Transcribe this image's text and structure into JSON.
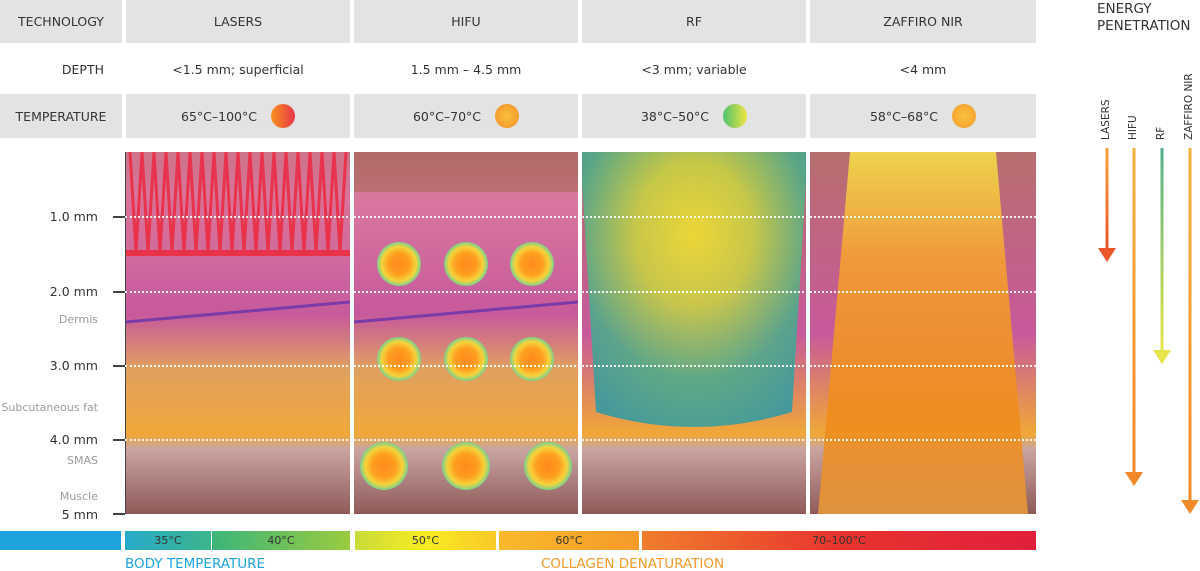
{
  "header": {
    "technology": "TECHNOLOGY",
    "cols": [
      "LASERS",
      "HIFU",
      "RF",
      "ZAFFIRO NIR"
    ]
  },
  "depth_row": {
    "label": "DEPTH",
    "values": [
      "<1.5 mm; superficial",
      "1.5 mm – 4.5 mm",
      "<3 mm; variable",
      "<4 mm"
    ]
  },
  "temperature_row": {
    "label": "TEMPERATURE",
    "values": [
      "65°C–100°C",
      "60°C–70°C",
      "38°C–50°C",
      "58°C–68°C"
    ],
    "dot_colors": [
      [
        "#f7941d",
        "#e8344a"
      ],
      [
        "#f7b733",
        "#f28c28"
      ],
      [
        "#4fc36f",
        "#f0e442"
      ],
      [
        "#f9c23c",
        "#f39c2c"
      ]
    ]
  },
  "depth_axis": {
    "marks": [
      "1.0 mm",
      "2.0 mm",
      "3.0 mm",
      "4.0 mm",
      "5 mm"
    ],
    "layers": [
      "Dermis",
      "Subcutaneous fat",
      "SMAS",
      "Muscle"
    ]
  },
  "energy_penetration": {
    "title_line1": "ENERGY",
    "title_line2": "PENETRATION",
    "arrows": [
      "LASERS",
      "HIFU",
      "RF",
      "ZAFFIRO NIR"
    ],
    "colors": [
      "#e8562a",
      "#f0882a",
      "#c9dd4a",
      "#f08b2a"
    ]
  },
  "scale": {
    "swatches": [
      "35°C",
      "40°C",
      "50°C",
      "60°C",
      "70–100°C"
    ],
    "body_temperature": "BODY TEMPERATURE",
    "collagen_denaturation": "COLLAGEN DENATURATION"
  }
}
